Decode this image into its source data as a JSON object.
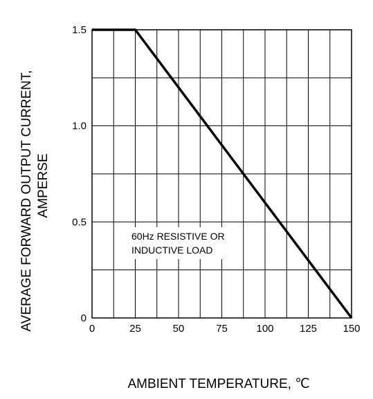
{
  "chart_data": {
    "type": "line",
    "xlabel": "AMBIENT TEMPERATURE, ℃",
    "ylabel_line1": "AVERAGE FORWARD OUTPUT CURRENT,",
    "ylabel_line2": "AMPERSE",
    "annotation_line1": "60Hz RESISTIVE OR",
    "annotation_line2": "INDUCTIVE LOAD",
    "xlim": [
      0,
      150
    ],
    "ylim": [
      0,
      1.5
    ],
    "xticks": [
      0,
      25,
      50,
      75,
      100,
      125,
      150
    ],
    "xtick_labels": [
      "0",
      "25",
      "50",
      "75",
      "100",
      "125",
      "150"
    ],
    "yticks": [
      0,
      0.5,
      1.0,
      1.5
    ],
    "ytick_labels": [
      "0",
      "0.5",
      "1.0",
      "1.5"
    ],
    "grid": true,
    "grid_x_step": 12.5,
    "grid_y_step": 0.25,
    "series": [
      {
        "x": [
          0,
          25,
          150
        ],
        "y": [
          1.5,
          1.5,
          0
        ]
      }
    ]
  }
}
